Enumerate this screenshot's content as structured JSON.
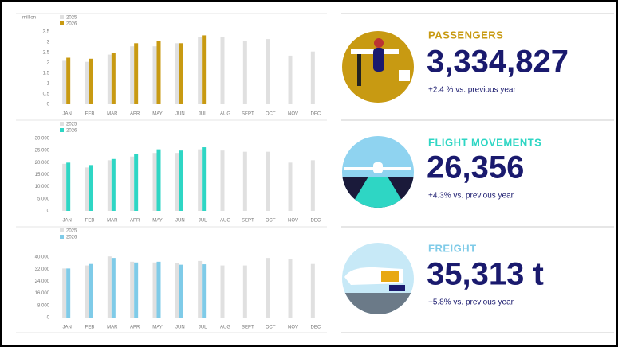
{
  "chart_data": [
    {
      "type": "bar",
      "ylabel": "million",
      "categories": [
        "JAN",
        "FEB",
        "MAR",
        "APR",
        "MAY",
        "JUN",
        "JUL",
        "AUG",
        "SEPT",
        "OCT",
        "NOV",
        "DEC"
      ],
      "series": [
        {
          "name": "2025",
          "color": "#e0e0e0",
          "values": [
            2.1,
            2.05,
            2.4,
            2.8,
            2.8,
            2.95,
            3.25,
            3.25,
            3.05,
            3.15,
            2.35,
            2.55
          ]
        },
        {
          "name": "2026",
          "color": "#c89a12",
          "values": [
            2.25,
            2.2,
            2.5,
            2.95,
            3.05,
            2.95,
            3.33,
            null,
            null,
            null,
            null,
            null
          ]
        }
      ],
      "ylim": [
        0,
        3.5
      ],
      "yticks": [
        0,
        0.5,
        1,
        1.5,
        2,
        2.5,
        3,
        3.5
      ],
      "grid": false
    },
    {
      "type": "bar",
      "categories": [
        "JAN",
        "FEB",
        "MAR",
        "APR",
        "MAY",
        "JUN",
        "JUL",
        "AUG",
        "SEPT",
        "OCT",
        "NOV",
        "DEC"
      ],
      "series": [
        {
          "name": "2025",
          "color": "#e0e0e0",
          "values": [
            19500,
            18000,
            21000,
            22500,
            24000,
            24000,
            25500,
            25000,
            24500,
            24500,
            20000,
            21000
          ]
        },
        {
          "name": "2026",
          "color": "#2ed6c4",
          "values": [
            20000,
            19000,
            21500,
            23500,
            25500,
            25000,
            26356,
            null,
            null,
            null,
            null,
            null
          ]
        }
      ],
      "ylim": [
        0,
        30000
      ],
      "yticks": [
        0,
        {
          "value": 5000,
          "label": "5,000"
        },
        {
          "value": 10000,
          "label": "10,000"
        },
        {
          "value": 15000,
          "label": "15,000"
        },
        {
          "value": 20000,
          "label": "20,000"
        },
        {
          "value": 25000,
          "label": "25,000"
        },
        {
          "value": 30000,
          "label": "30,000"
        }
      ],
      "grid": false
    },
    {
      "type": "bar",
      "categories": [
        "JAN",
        "FEB",
        "MAR",
        "APR",
        "MAY",
        "JUN",
        "JUL",
        "AUG",
        "SEPT",
        "OCT",
        "NOV",
        "DEC"
      ],
      "series": [
        {
          "name": "2025",
          "color": "#e0e0e0",
          "values": [
            32500,
            34500,
            40500,
            37000,
            36500,
            36000,
            37500,
            34500,
            34500,
            39500,
            38500,
            35500
          ]
        },
        {
          "name": "2026",
          "color": "#7fcbe8",
          "values": [
            32500,
            35500,
            39500,
            36500,
            37000,
            35000,
            35313,
            null,
            null,
            null,
            null,
            null
          ]
        }
      ],
      "ylim": [
        0,
        48000
      ],
      "yticks": [
        0,
        {
          "value": 8000,
          "label": "8,000"
        },
        {
          "value": 16000,
          "label": "16,000"
        },
        {
          "value": 24000,
          "label": "24,000"
        },
        {
          "value": 32000,
          "label": "32,000"
        },
        {
          "value": 40000,
          "label": "40,000"
        }
      ],
      "grid": false
    }
  ],
  "kpis": [
    {
      "title": "PASSENGERS",
      "value": "3,334,827",
      "change": "+2.4 % vs. previous year"
    },
    {
      "title": "FLIGHT MOVEMENTS",
      "value": "26,356",
      "change": "+4.3% vs. previous year"
    },
    {
      "title": "FREIGHT",
      "value": "35,313 t",
      "change": "−5.8% vs. previous year"
    }
  ]
}
